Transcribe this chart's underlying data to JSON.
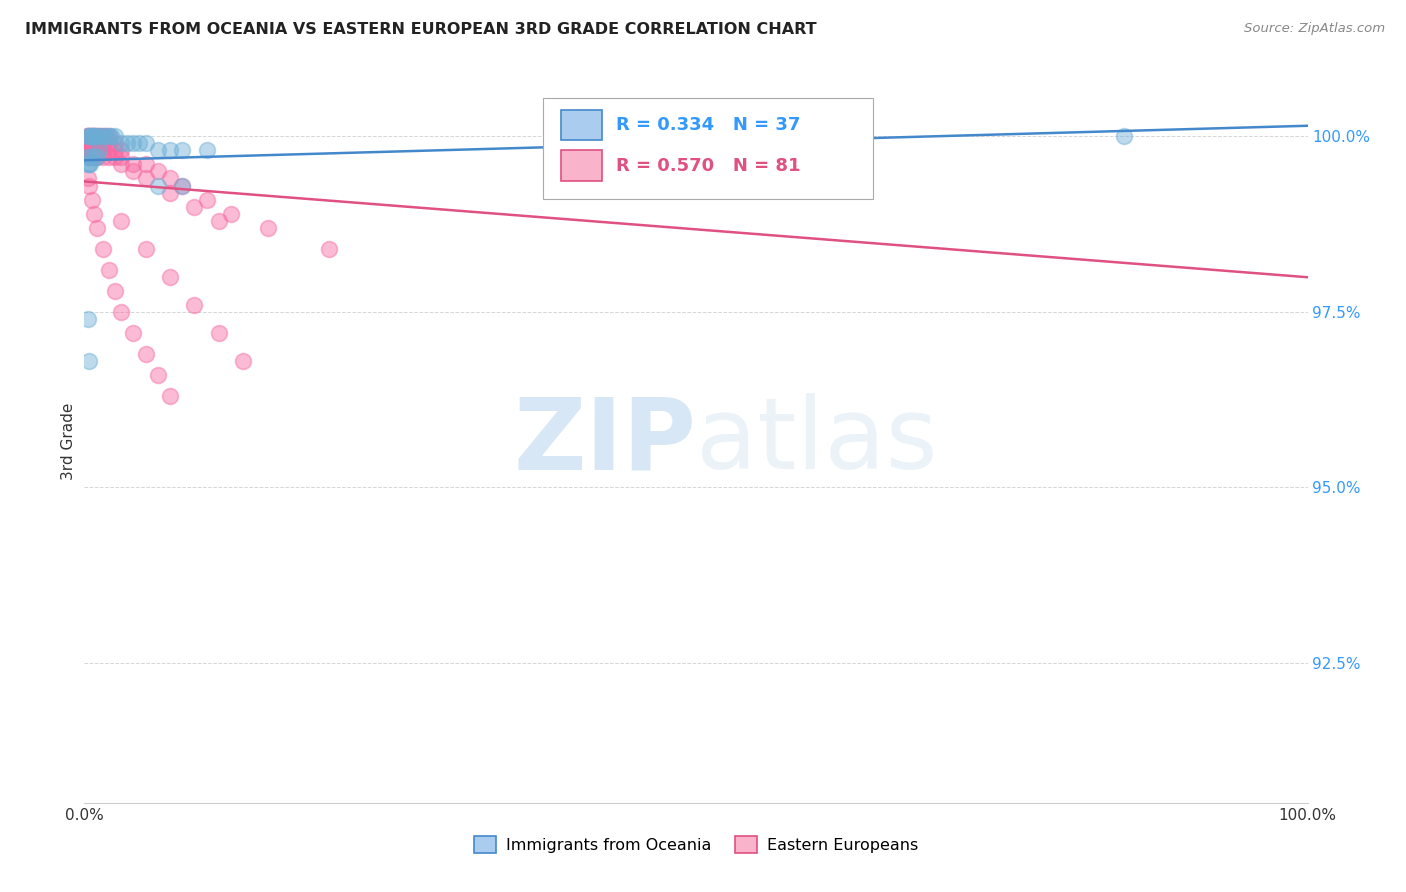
{
  "title": "IMMIGRANTS FROM OCEANIA VS EASTERN EUROPEAN 3RD GRADE CORRELATION CHART",
  "source": "Source: ZipAtlas.com",
  "ylabel": "3rd Grade",
  "xmin": 0.0,
  "xmax": 1.0,
  "ymin": 0.905,
  "ymax": 1.008,
  "yticks": [
    0.925,
    0.95,
    0.975,
    1.0
  ],
  "ytick_labels": [
    "92.5%",
    "95.0%",
    "97.5%",
    "100.0%"
  ],
  "xticks": [
    0.0,
    0.2,
    0.4,
    0.6,
    0.8,
    1.0
  ],
  "xtick_labels": [
    "0.0%",
    "",
    "",
    "",
    "",
    "100.0%"
  ],
  "legend_r_oceania": "R = 0.334",
  "legend_n_oceania": "N = 37",
  "legend_r_eastern": "R = 0.570",
  "legend_n_eastern": "N = 81",
  "color_oceania": "#6baed6",
  "color_eastern": "#f768a1",
  "color_oceania_line": "#4488cc",
  "color_eastern_line": "#e05080",
  "watermark_zip": "ZIP",
  "watermark_atlas": "atlas",
  "oceania_x": [
    0.003,
    0.004,
    0.005,
    0.006,
    0.007,
    0.008,
    0.01,
    0.012,
    0.015,
    0.018,
    0.02,
    0.022,
    0.025,
    0.03,
    0.035,
    0.04,
    0.045,
    0.05,
    0.06,
    0.07,
    0.08,
    0.1,
    0.003,
    0.005,
    0.008,
    0.01,
    0.012,
    0.003,
    0.004,
    0.005,
    0.55,
    0.6,
    0.85,
    0.06,
    0.08,
    0.003,
    0.004
  ],
  "oceania_y": [
    1.0,
    1.0,
    1.0,
    1.0,
    1.0,
    1.0,
    1.0,
    1.0,
    1.0,
    1.0,
    1.0,
    1.0,
    1.0,
    0.999,
    0.999,
    0.999,
    0.999,
    0.999,
    0.998,
    0.998,
    0.998,
    0.998,
    0.997,
    0.997,
    0.997,
    0.997,
    0.998,
    0.996,
    0.996,
    0.996,
    0.999,
    1.0,
    1.0,
    0.993,
    0.993,
    0.974,
    0.968
  ],
  "eastern_x": [
    0.002,
    0.003,
    0.004,
    0.005,
    0.006,
    0.007,
    0.008,
    0.009,
    0.01,
    0.012,
    0.014,
    0.016,
    0.018,
    0.02,
    0.002,
    0.003,
    0.004,
    0.005,
    0.006,
    0.007,
    0.008,
    0.01,
    0.012,
    0.015,
    0.02,
    0.025,
    0.003,
    0.004,
    0.005,
    0.006,
    0.008,
    0.01,
    0.015,
    0.02,
    0.025,
    0.03,
    0.004,
    0.005,
    0.006,
    0.008,
    0.01,
    0.015,
    0.02,
    0.025,
    0.03,
    0.04,
    0.05,
    0.06,
    0.07,
    0.08,
    0.1,
    0.12,
    0.15,
    0.2,
    0.03,
    0.04,
    0.05,
    0.07,
    0.09,
    0.11,
    0.55,
    0.6,
    0.003,
    0.004,
    0.006,
    0.008,
    0.01,
    0.015,
    0.02,
    0.025,
    0.03,
    0.04,
    0.05,
    0.06,
    0.07,
    0.03,
    0.05,
    0.07,
    0.09,
    0.11,
    0.13
  ],
  "eastern_y": [
    1.0,
    1.0,
    1.0,
    1.0,
    1.0,
    1.0,
    1.0,
    1.0,
    1.0,
    1.0,
    1.0,
    1.0,
    1.0,
    1.0,
    0.999,
    0.999,
    0.999,
    0.999,
    0.999,
    0.999,
    0.999,
    0.999,
    0.999,
    0.999,
    0.999,
    0.999,
    0.998,
    0.998,
    0.998,
    0.998,
    0.998,
    0.998,
    0.998,
    0.998,
    0.998,
    0.998,
    0.997,
    0.997,
    0.997,
    0.997,
    0.997,
    0.997,
    0.997,
    0.997,
    0.997,
    0.996,
    0.996,
    0.995,
    0.994,
    0.993,
    0.991,
    0.989,
    0.987,
    0.984,
    0.996,
    0.995,
    0.994,
    0.992,
    0.99,
    0.988,
    0.999,
    0.999,
    0.994,
    0.993,
    0.991,
    0.989,
    0.987,
    0.984,
    0.981,
    0.978,
    0.975,
    0.972,
    0.969,
    0.966,
    0.963,
    0.988,
    0.984,
    0.98,
    0.976,
    0.972,
    0.968
  ]
}
